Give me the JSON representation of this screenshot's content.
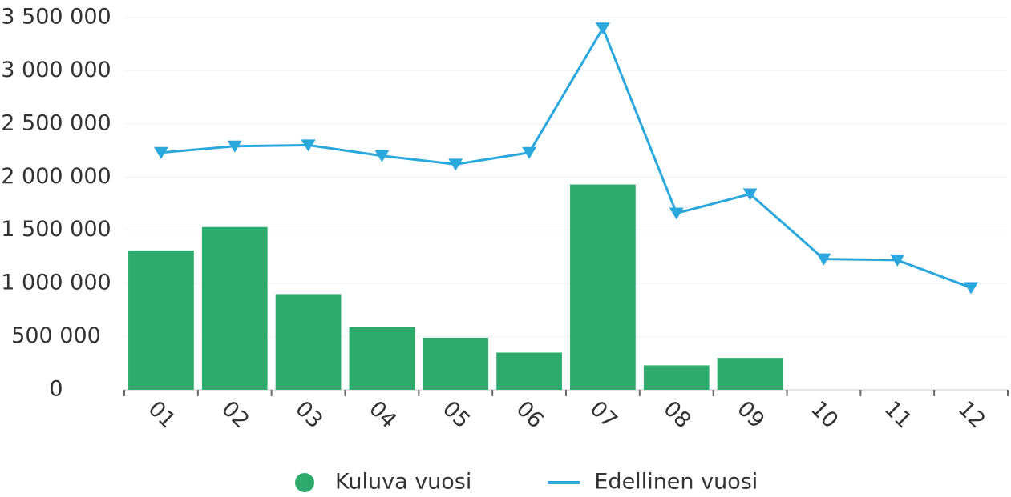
{
  "chart_data": {
    "type": "bar_line",
    "categories": [
      "01",
      "02",
      "03",
      "04",
      "05",
      "06",
      "07",
      "08",
      "09",
      "10",
      "11",
      "12"
    ],
    "series": [
      {
        "name": "Kuluva vuosi",
        "type": "bar",
        "color": "#2eaa6c",
        "values": [
          1310000,
          1530000,
          900000,
          590000,
          490000,
          350000,
          1930000,
          230000,
          300000,
          null,
          null,
          null
        ]
      },
      {
        "name": "Edellinen vuosi",
        "type": "line",
        "color": "#2aa7dc",
        "values": [
          2230000,
          2290000,
          2300000,
          2200000,
          2120000,
          2230000,
          3400000,
          1660000,
          1840000,
          1230000,
          1220000,
          960000
        ]
      }
    ],
    "ylim": [
      0,
      3500000
    ],
    "yticks": [
      0,
      {
        "value": 500000,
        "label": "500 000"
      },
      {
        "value": 1000000,
        "label": "1 000 000"
      },
      {
        "value": 1500000,
        "label": "1 500 000"
      },
      {
        "value": 2000000,
        "label": "2 000 000"
      },
      {
        "value": 2500000,
        "label": "2 500 000"
      },
      {
        "value": 3000000,
        "label": "3 000 000"
      },
      {
        "value": 3500000,
        "label": "3 500 000"
      }
    ],
    "grid": true,
    "legend": "bottom"
  }
}
